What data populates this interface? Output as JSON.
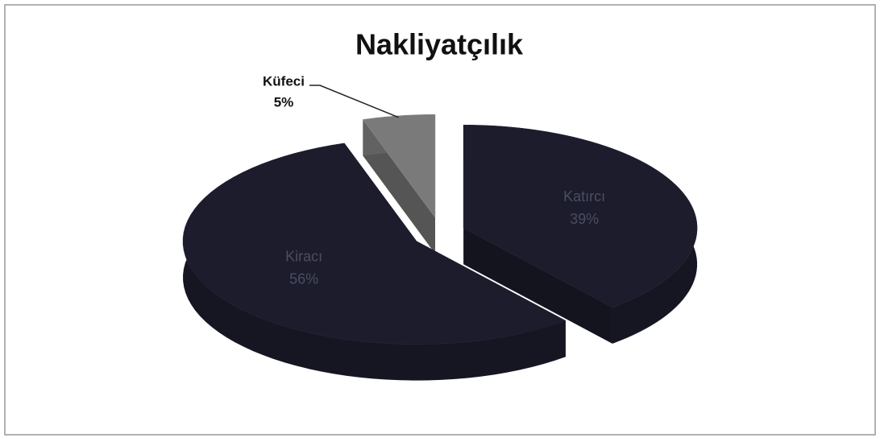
{
  "chart_data": {
    "type": "pie",
    "title": "Nakliyatçılık",
    "categories": [
      "Katırcı",
      "Kiracı",
      "Küfeci"
    ],
    "values": [
      39,
      56,
      5
    ],
    "value_labels": [
      "39%",
      "56%",
      "5%"
    ],
    "colors": [
      "#1c1c2c",
      "#1c1c2c",
      "#7a7a7a"
    ]
  }
}
